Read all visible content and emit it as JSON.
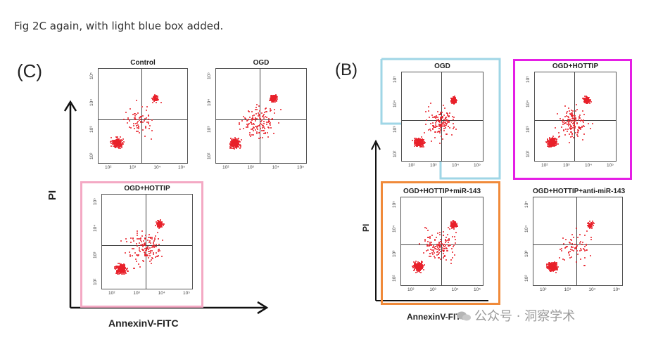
{
  "caption": "Fig 2C again, with light blue box added.",
  "panel_c": {
    "label": "(C)",
    "plots": [
      {
        "id": "c-control",
        "title": "Control"
      },
      {
        "id": "c-ogd",
        "title": "OGD"
      },
      {
        "id": "c-ogd-hottip",
        "title": "OGD+HOTTIP"
      }
    ],
    "x_axis_label": "AnnexinV-FITC",
    "y_axis_label": "PI",
    "highlight_color": "#f4a9c4"
  },
  "panel_b": {
    "label": "(B)",
    "plots": [
      {
        "id": "b-ogd",
        "title": "OGD"
      },
      {
        "id": "b-ogd-hottip",
        "title": "OGD+HOTTIP"
      },
      {
        "id": "b-ogd-hottip-mir143",
        "title": "OGD+HOTTIP+miR-143"
      },
      {
        "id": "b-ogd-hottip-antimir143",
        "title": "OGD+HOTTIP+anti-miR-143"
      }
    ],
    "x_axis_label": "AnnexinV-FITC",
    "y_axis_label": "PI",
    "highlight_colors": {
      "light_blue": "#9fd6e6",
      "magenta": "#e51ee5",
      "orange": "#f08a3a"
    }
  },
  "tick_labels": [
    "10²",
    "10³",
    "10⁴",
    "10⁵"
  ],
  "watermark": "公众号 · 洞察学术"
}
